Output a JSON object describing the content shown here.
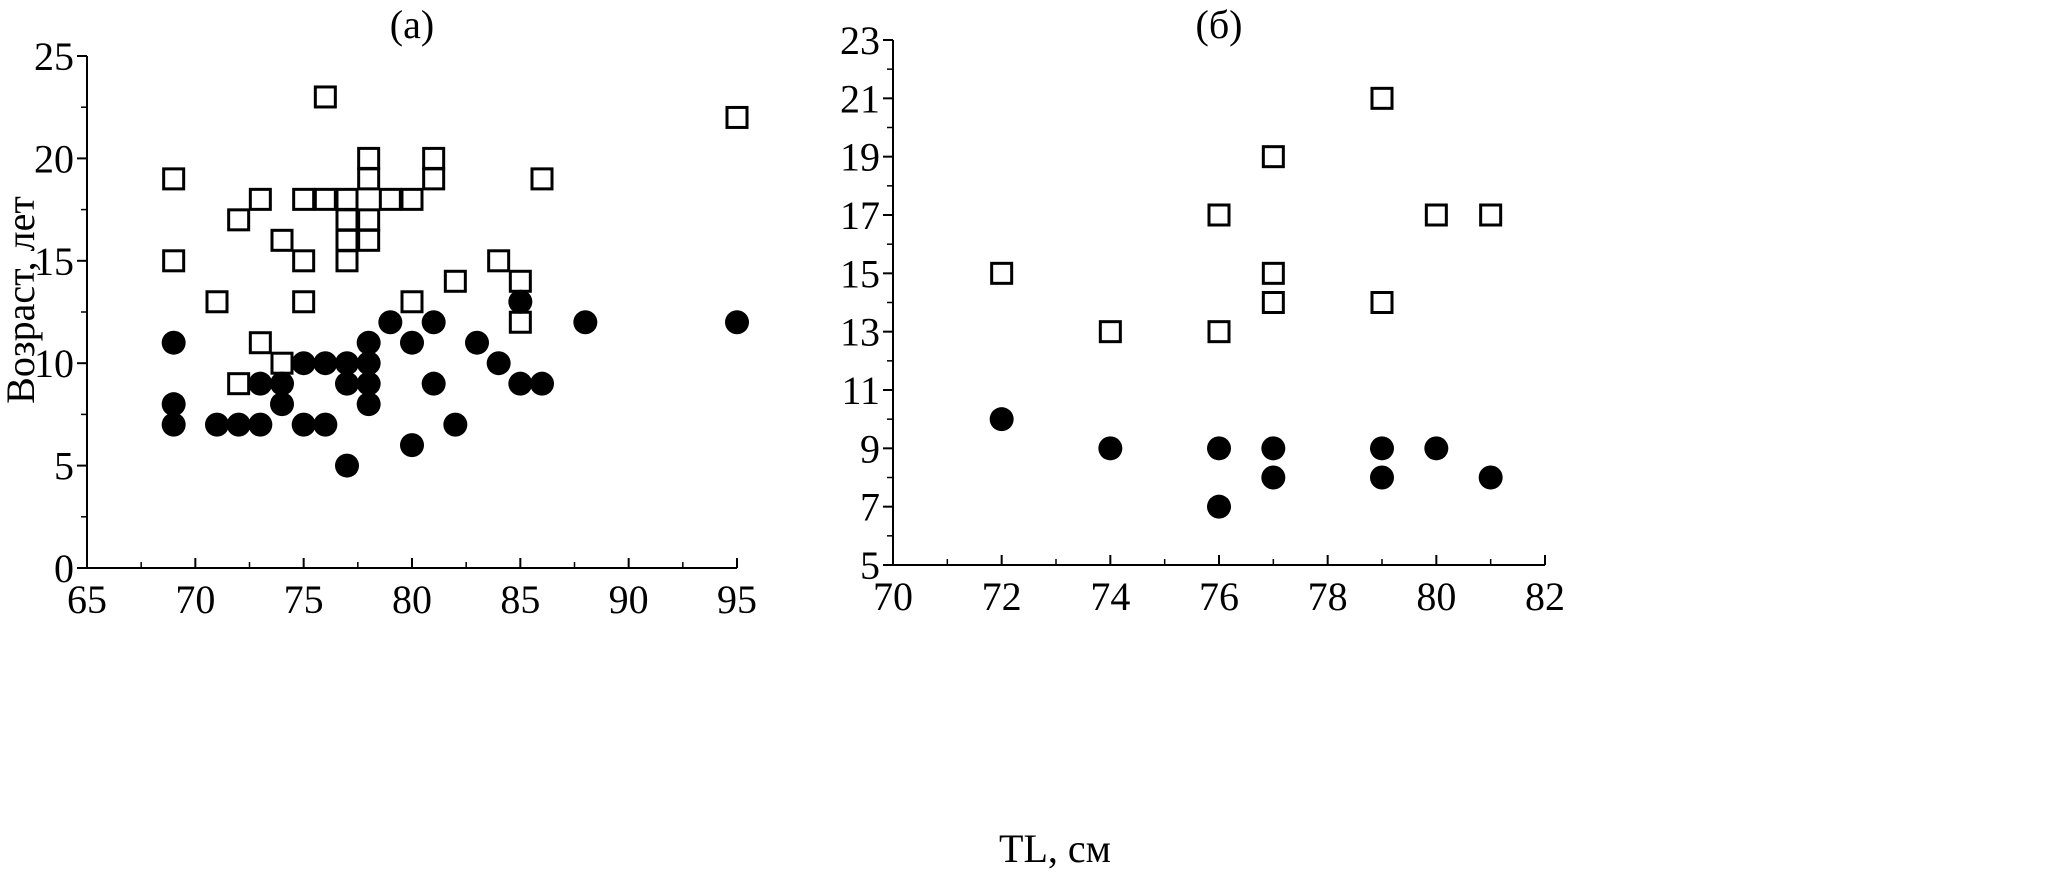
{
  "figure": {
    "xlabel": "TL, см",
    "ylabel": "Возраст, лет"
  },
  "chart_data": [
    {
      "type": "scatter",
      "title": "(а)",
      "xlabel": "TL, см",
      "ylabel": "Возраст, лет",
      "xlim": [
        65,
        95
      ],
      "ylim": [
        0,
        25
      ],
      "xticks": [
        65,
        70,
        75,
        80,
        85,
        90,
        95
      ],
      "yticks": [
        0,
        5,
        10,
        15,
        20,
        25
      ],
      "grid": false,
      "series": [
        {
          "marker": "open-square",
          "color": "#000000",
          "points": [
            [
              69,
              19
            ],
            [
              69,
              15
            ],
            [
              71,
              13
            ],
            [
              72,
              17
            ],
            [
              72,
              9
            ],
            [
              73,
              18
            ],
            [
              73,
              11
            ],
            [
              74,
              16
            ],
            [
              74,
              10
            ],
            [
              75,
              18
            ],
            [
              75,
              15
            ],
            [
              75,
              13
            ],
            [
              76,
              23
            ],
            [
              76,
              18
            ],
            [
              77,
              18
            ],
            [
              77,
              17
            ],
            [
              77,
              16
            ],
            [
              77,
              15
            ],
            [
              78,
              20
            ],
            [
              78,
              19
            ],
            [
              78,
              17
            ],
            [
              78,
              16
            ],
            [
              79,
              18
            ],
            [
              80,
              18
            ],
            [
              80,
              13
            ],
            [
              81,
              20
            ],
            [
              81,
              19
            ],
            [
              82,
              14
            ],
            [
              84,
              15
            ],
            [
              85,
              14
            ],
            [
              85,
              12
            ],
            [
              86,
              19
            ],
            [
              95,
              22
            ]
          ]
        },
        {
          "marker": "filled-circle",
          "color": "#000000",
          "points": [
            [
              69,
              11
            ],
            [
              69,
              8
            ],
            [
              69,
              7
            ],
            [
              71,
              7
            ],
            [
              72,
              7
            ],
            [
              73,
              9
            ],
            [
              73,
              7
            ],
            [
              74,
              9
            ],
            [
              74,
              8
            ],
            [
              75,
              10
            ],
            [
              75,
              7
            ],
            [
              76,
              10
            ],
            [
              76,
              7
            ],
            [
              77,
              10
            ],
            [
              77,
              9
            ],
            [
              77,
              5
            ],
            [
              78,
              11
            ],
            [
              78,
              10
            ],
            [
              78,
              9
            ],
            [
              78,
              8
            ],
            [
              79,
              12
            ],
            [
              80,
              11
            ],
            [
              80,
              6
            ],
            [
              81,
              12
            ],
            [
              81,
              9
            ],
            [
              82,
              7
            ],
            [
              83,
              11
            ],
            [
              84,
              10
            ],
            [
              85,
              13
            ],
            [
              85,
              9
            ],
            [
              86,
              9
            ],
            [
              88,
              12
            ],
            [
              95,
              12
            ]
          ]
        }
      ]
    },
    {
      "type": "scatter",
      "title": "(б)",
      "xlabel": "TL, см",
      "ylabel": "",
      "xlim": [
        70,
        82
      ],
      "ylim": [
        5,
        23
      ],
      "xticks": [
        70,
        72,
        74,
        76,
        78,
        80,
        82
      ],
      "yticks": [
        5,
        7,
        9,
        11,
        13,
        15,
        17,
        19,
        21,
        23
      ],
      "grid": false,
      "series": [
        {
          "marker": "open-square",
          "color": "#000000",
          "points": [
            [
              72,
              15
            ],
            [
              74,
              13
            ],
            [
              76,
              17
            ],
            [
              76,
              13
            ],
            [
              77,
              19
            ],
            [
              77,
              15
            ],
            [
              77,
              14
            ],
            [
              79,
              21
            ],
            [
              79,
              14
            ],
            [
              80,
              17
            ],
            [
              81,
              17
            ]
          ]
        },
        {
          "marker": "filled-circle",
          "color": "#000000",
          "points": [
            [
              72,
              10
            ],
            [
              74,
              9
            ],
            [
              76,
              9
            ],
            [
              76,
              7
            ],
            [
              77,
              9
            ],
            [
              77,
              8
            ],
            [
              79,
              9
            ],
            [
              79,
              8
            ],
            [
              80,
              9
            ],
            [
              81,
              8
            ]
          ]
        }
      ]
    }
  ]
}
